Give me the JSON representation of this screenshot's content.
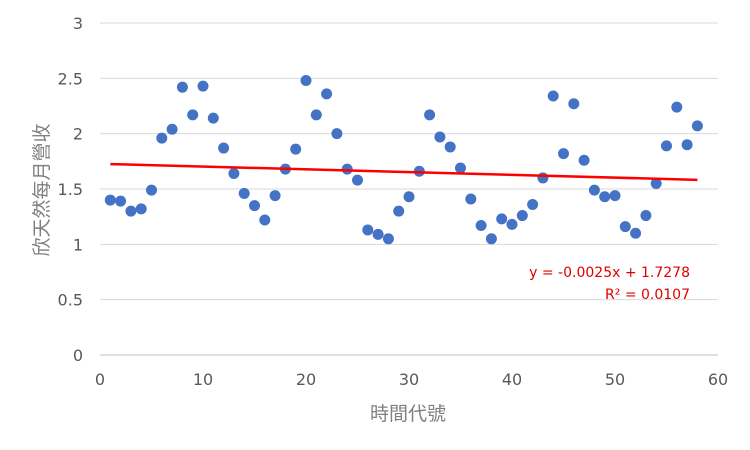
{
  "chart_data": {
    "type": "scatter",
    "title": "",
    "xlabel": "時間代號",
    "ylabel": "欣天然每月營收",
    "xlim": [
      0,
      60
    ],
    "ylim": [
      0,
      3
    ],
    "x_ticks": [
      "0",
      "10",
      "20",
      "30",
      "40",
      "50",
      "60"
    ],
    "y_ticks": [
      "0",
      "0.5",
      "1",
      "1.5",
      "2",
      "2.5",
      "3"
    ],
    "grid": "horizontal",
    "series": [
      {
        "color": "#4472c4",
        "x": [
          1,
          2,
          3,
          4,
          5,
          6,
          7,
          8,
          9,
          10,
          11,
          12,
          13,
          14,
          15,
          16,
          17,
          18,
          19,
          20,
          21,
          22,
          23,
          24,
          25,
          26,
          27,
          28,
          29,
          30,
          31,
          32,
          33,
          34,
          35,
          36,
          37,
          38,
          39,
          40,
          41,
          42,
          43,
          44,
          45,
          46,
          47,
          48,
          49,
          50,
          51,
          52,
          53,
          54,
          55,
          56,
          57,
          58
        ],
        "y": [
          1.4,
          1.39,
          1.3,
          1.32,
          1.49,
          1.96,
          2.04,
          2.42,
          2.17,
          2.43,
          2.14,
          1.87,
          1.64,
          1.46,
          1.35,
          1.22,
          1.44,
          1.68,
          1.86,
          2.48,
          2.17,
          2.36,
          2.0,
          1.68,
          1.58,
          1.13,
          1.09,
          1.05,
          1.3,
          1.43,
          1.66,
          2.17,
          1.97,
          1.88,
          1.69,
          1.41,
          1.17,
          1.05,
          1.23,
          1.18,
          1.26,
          1.36,
          1.6,
          2.34,
          1.82,
          2.27,
          1.76,
          1.49,
          1.43,
          1.44,
          1.16,
          1.1,
          1.26,
          1.55,
          1.89,
          2.24,
          1.9,
          2.07
        ]
      }
    ],
    "trendline": {
      "color": "#ff0000",
      "slope": -0.0025,
      "intercept": 1.7278,
      "x_range": [
        1,
        58
      ],
      "equation": "y = -0.0025x + 1.7278",
      "r_squared": "R² = 0.0107"
    }
  }
}
